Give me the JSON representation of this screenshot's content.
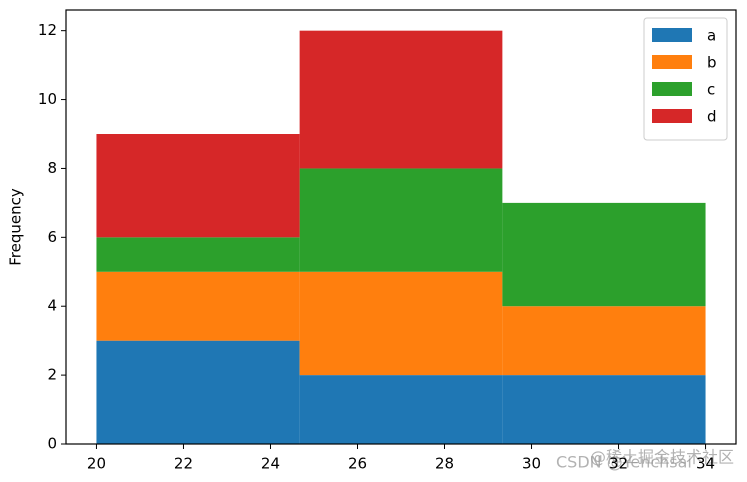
{
  "chart_data": {
    "type": "histogram",
    "ylabel": "Frequency",
    "bins": [
      20,
      24.67,
      29.33,
      34
    ],
    "series": [
      {
        "name": "a",
        "color": "#1f77b4",
        "values": [
          3,
          2,
          2
        ]
      },
      {
        "name": "b",
        "color": "#ff7f0e",
        "values": [
          2,
          3,
          2
        ]
      },
      {
        "name": "c",
        "color": "#2ca02c",
        "values": [
          1,
          3,
          3
        ]
      },
      {
        "name": "d",
        "color": "#d62728",
        "values": [
          3,
          4,
          0
        ]
      }
    ],
    "stacked": true,
    "xlim": [
      19.3,
      34.7
    ],
    "xticks": [
      20,
      22,
      24,
      26,
      28,
      30,
      32,
      34
    ],
    "ylim": [
      0,
      12.6
    ],
    "yticks": [
      0,
      2,
      4,
      6,
      8,
      10,
      12
    ],
    "legend": "upper right"
  },
  "watermark": [
    "CSDN @Yenchsai",
    "@稀土掘金技术社区"
  ]
}
